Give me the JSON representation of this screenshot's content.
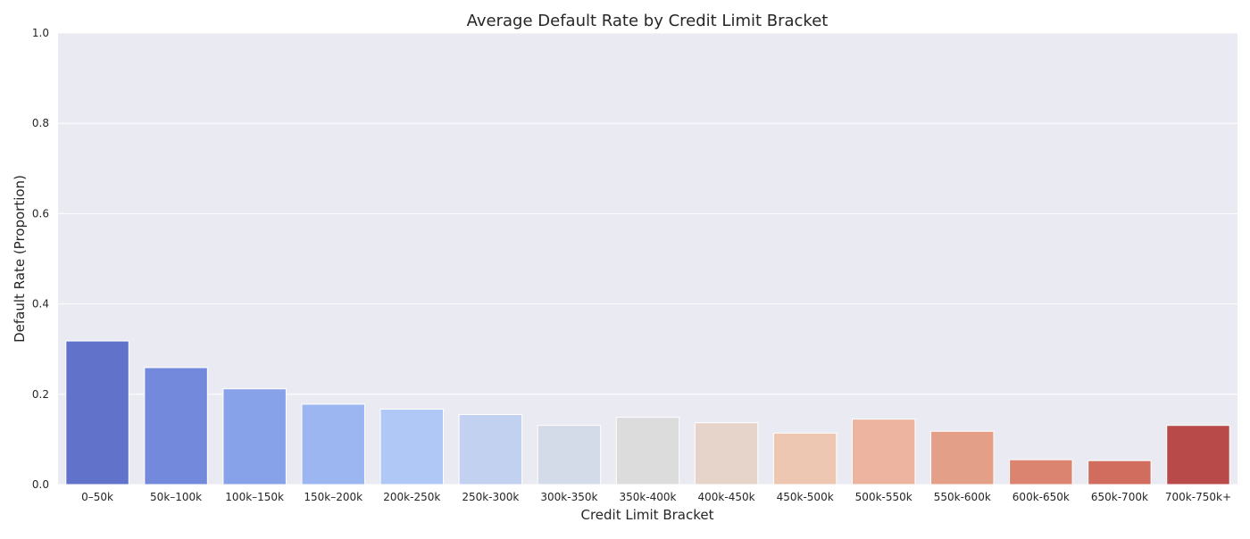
{
  "chart_data": {
    "type": "bar",
    "title": "Average Default Rate by Credit Limit Bracket",
    "xlabel": "Credit Limit Bracket",
    "ylabel": "Default Rate (Proportion)",
    "ylim": [
      0,
      1.0
    ],
    "yticks": [
      "0.0",
      "0.2",
      "0.4",
      "0.6",
      "0.8",
      "1.0"
    ],
    "grid": true,
    "background_color": "#eaeaf2",
    "gridline_color": "#ffffff",
    "categories": [
      "0–50k",
      "50k–100k",
      "100k–150k",
      "150k–200k",
      "200k-250k",
      "250k-300k",
      "300k-350k",
      "350k-400k",
      "400k-450k",
      "450k-500k",
      "500k-550k",
      "550k-600k",
      "600k-650k",
      "650k-700k",
      "700k-750k+"
    ],
    "values": [
      0.318,
      0.259,
      0.212,
      0.178,
      0.167,
      0.155,
      0.131,
      0.149,
      0.137,
      0.114,
      0.145,
      0.118,
      0.055,
      0.053,
      0.131
    ],
    "colors": [
      "#6072c9",
      "#7389dc",
      "#87a2e9",
      "#9cb6f2",
      "#afc8f6",
      "#c2d1f0",
      "#d3dbe8",
      "#dcdcdc",
      "#e6d4cb",
      "#eec7b3",
      "#edb49f",
      "#e49f88",
      "#db846f",
      "#d06d5e",
      "#b84a4a"
    ]
  }
}
